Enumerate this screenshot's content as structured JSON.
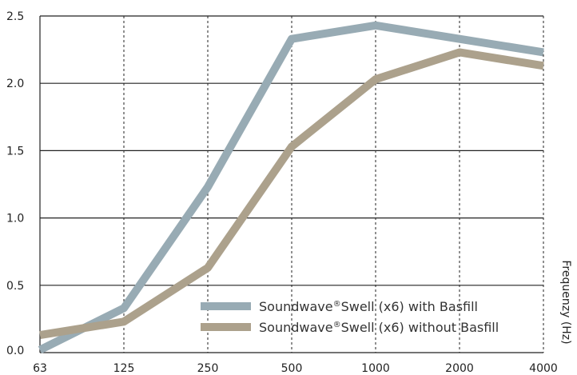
{
  "chart_data": {
    "type": "line",
    "categories": [
      "63",
      "125",
      "250",
      "500",
      "1000",
      "2000",
      "4000"
    ],
    "yticks": [
      "0.0",
      "0.5",
      "1.0",
      "1.5",
      "2.0",
      "2.5"
    ],
    "ylim": [
      0,
      2.5
    ],
    "xlabel": "Frequenzy (Hz)",
    "ylabel": "",
    "grid": true,
    "legend_position": "bottom-right",
    "series": [
      {
        "name": "Soundwave®Swell (x6) with Basfill",
        "name_parts": [
          "Soundwave",
          "®",
          "Swell (x6) with Basfill"
        ],
        "color": "#98abb4",
        "values": [
          0.02,
          0.33,
          1.23,
          2.33,
          2.43,
          2.33,
          2.23
        ]
      },
      {
        "name": "Soundwave®Swell (x6) without Basfill",
        "name_parts": [
          "Soundwave",
          "®",
          "Swell (x6) without Basfill"
        ],
        "color": "#aca18c",
        "values": [
          0.13,
          0.23,
          0.63,
          1.53,
          2.03,
          2.23,
          2.13
        ]
      }
    ]
  }
}
